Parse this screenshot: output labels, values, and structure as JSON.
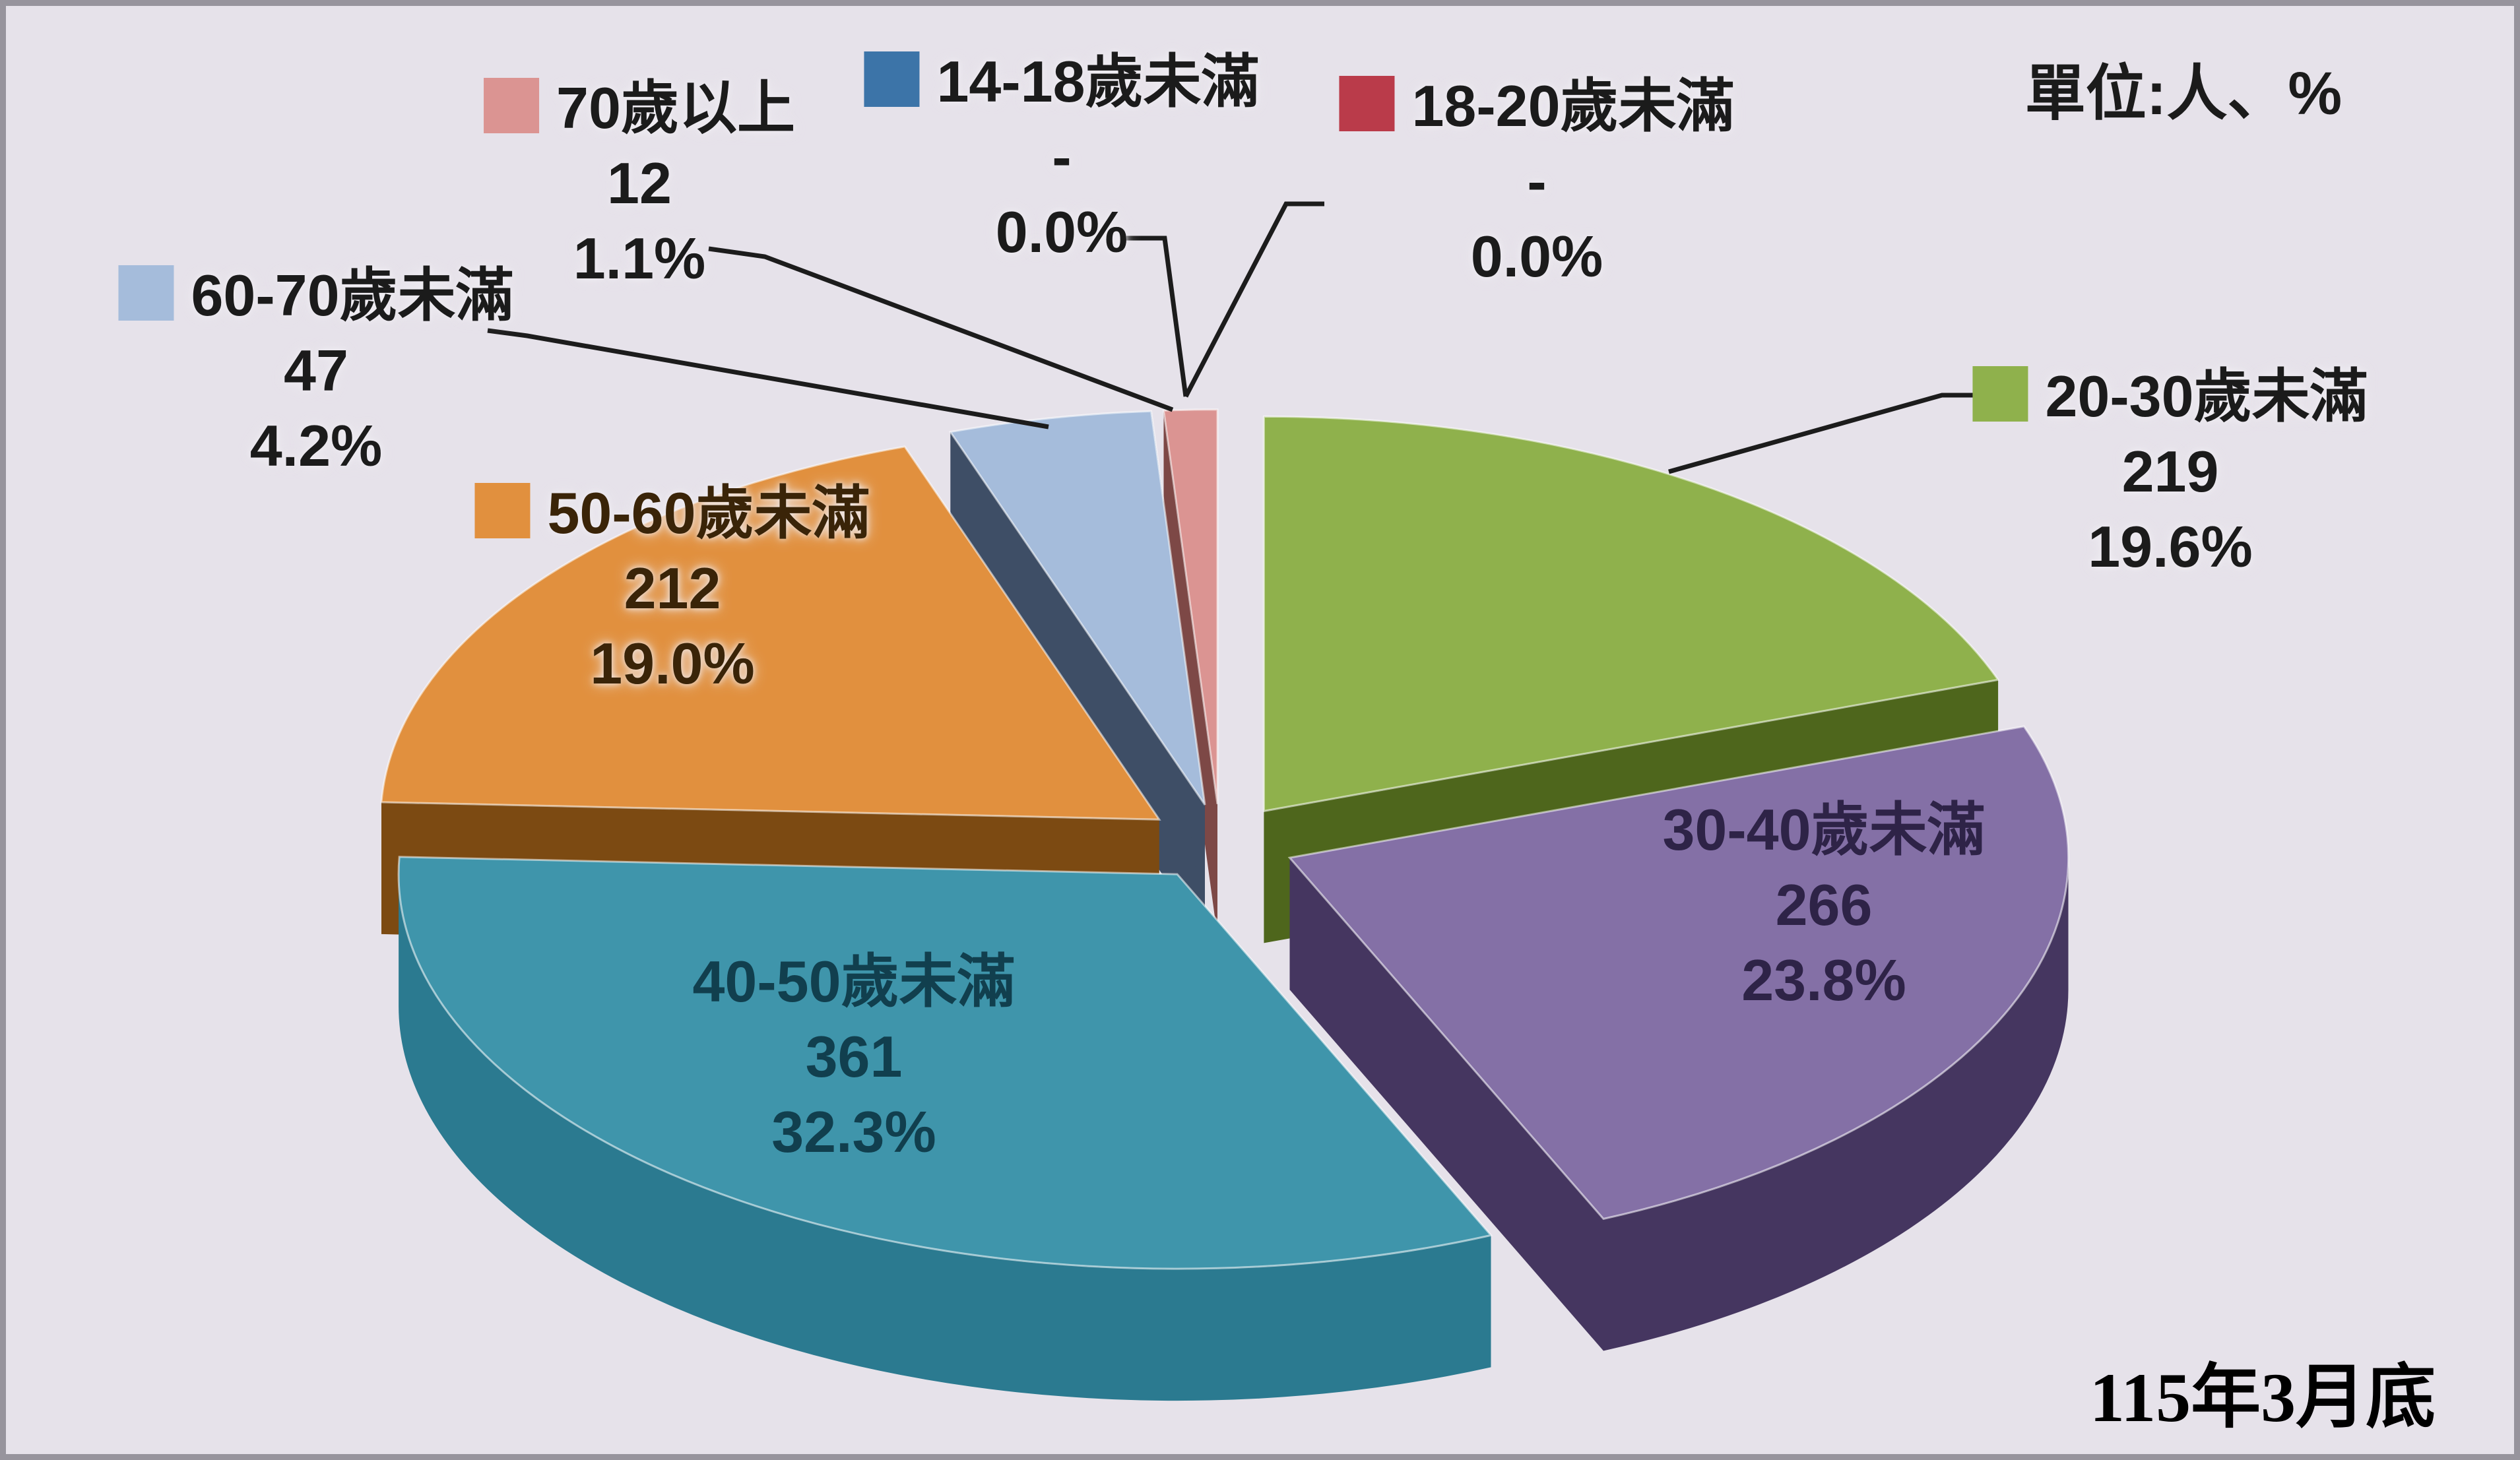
{
  "header": {
    "unit_note": "單位:人、%"
  },
  "footer": {
    "date_note": "115年3月底"
  },
  "chart_data": {
    "type": "pie",
    "style": "3d-exploded",
    "unit": "人、%",
    "as_of": "115年3月底",
    "background_color": "#E6E2EA",
    "start_angle_deg": 0,
    "direction": "clockwise",
    "series": [
      {
        "label": "14-18歲未滿",
        "value": 0,
        "value_text": "-",
        "pct": 0,
        "pct_text": "0.0%",
        "color": "#3C74A8",
        "side_color": "#23405E"
      },
      {
        "label": "18-20歲未滿",
        "value": 0,
        "value_text": "-",
        "pct": 0,
        "pct_text": "0.0%",
        "color": "#BA3B4A",
        "side_color": "#5E1F26"
      },
      {
        "label": "20-30歲未滿",
        "value": 219,
        "value_text": "219",
        "pct": 19.6,
        "pct_text": "19.6%",
        "color": "#8FB14C",
        "side_color": "#4E661C"
      },
      {
        "label": "30-40歲未滿",
        "value": 266,
        "value_text": "266",
        "pct": 23.8,
        "pct_text": "23.8%",
        "color": "#8470A6",
        "side_color": "#453660"
      },
      {
        "label": "40-50歲未滿",
        "value": 361,
        "value_text": "361",
        "pct": 32.3,
        "pct_text": "32.3%",
        "color": "#3F95AB",
        "side_color": "#2B7A90"
      },
      {
        "label": "50-60歲未滿",
        "value": 212,
        "value_text": "212",
        "pct": 19.0,
        "pct_text": "19.0%",
        "color": "#E1903E",
        "side_color": "#7C4A12"
      },
      {
        "label": "60-70歲未滿",
        "value": 47,
        "value_text": "47",
        "pct": 4.2,
        "pct_text": "4.2%",
        "color": "#A5BCDB",
        "side_color": "#3E4E66"
      },
      {
        "label": "70歲以上",
        "value": 12,
        "value_text": "12",
        "pct": 1.1,
        "pct_text": "1.1%",
        "color": "#DB9492",
        "side_color": "#7D4846"
      }
    ],
    "leader_line_color": "#1c1c1c"
  }
}
